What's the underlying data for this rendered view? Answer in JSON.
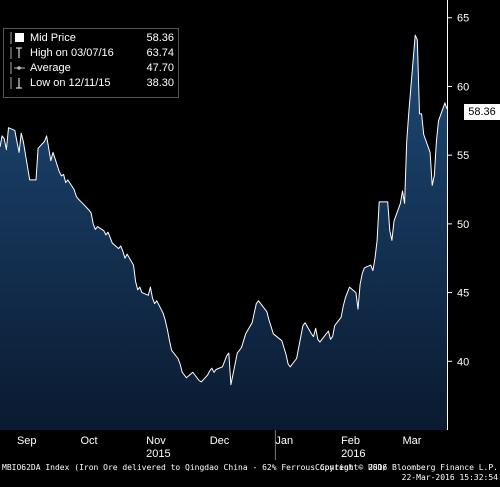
{
  "chart_data": {
    "type": "area",
    "title": "",
    "xlabel": "",
    "ylabel": "",
    "ylim": [
      35,
      66
    ],
    "grid": false,
    "legend_placement": "top-left",
    "colors": {
      "fill_top": "#1e4a78",
      "fill_bottom": "#0a1a30",
      "line": "#ffffff",
      "divider": "#7a7a7a",
      "background": "#000000"
    },
    "x_tick_labels": [
      {
        "label": "Sep",
        "date": "2015-09-01"
      },
      {
        "label": "Oct",
        "date": "2015-10-01"
      },
      {
        "label": "Nov",
        "date": "2015-11-01"
      },
      {
        "label": "Dec",
        "date": "2015-12-01"
      },
      {
        "label": "Jan",
        "date": "2016-01-01"
      },
      {
        "label": "Feb",
        "date": "2016-02-01"
      },
      {
        "label": "Mar",
        "date": "2016-03-01"
      }
    ],
    "year_labels": [
      {
        "label": "2015",
        "date": "2015-11-01"
      },
      {
        "label": "2016",
        "date": "2016-02-01"
      }
    ],
    "year_divider_date": "2016-01-01",
    "x_range": [
      "2015-08-24",
      "2016-03-22"
    ],
    "y_ticks": [
      40,
      45,
      50,
      55,
      60,
      65
    ],
    "series": [
      {
        "name": "Mid Price",
        "points": [
          [
            "2015-08-24",
            55.6
          ],
          [
            "2015-08-25",
            56.4
          ],
          [
            "2015-08-26",
            56.2
          ],
          [
            "2015-08-27",
            55.4
          ],
          [
            "2015-08-28",
            57.0
          ],
          [
            "2015-08-31",
            56.8
          ],
          [
            "2015-09-01",
            56.0
          ],
          [
            "2015-09-02",
            55.2
          ],
          [
            "2015-09-03",
            56.6
          ],
          [
            "2015-09-04",
            56.0
          ],
          [
            "2015-09-07",
            53.2
          ],
          [
            "2015-09-08",
            53.2
          ],
          [
            "2015-09-09",
            53.2
          ],
          [
            "2015-09-10",
            53.2
          ],
          [
            "2015-09-11",
            55.5
          ],
          [
            "2015-09-14",
            56.0
          ],
          [
            "2015-09-15",
            56.4
          ],
          [
            "2015-09-16",
            55.5
          ],
          [
            "2015-09-17",
            54.6
          ],
          [
            "2015-09-18",
            55.2
          ],
          [
            "2015-09-21",
            53.8
          ],
          [
            "2015-09-22",
            53.5
          ],
          [
            "2015-09-23",
            53.6
          ],
          [
            "2015-09-24",
            53.0
          ],
          [
            "2015-09-25",
            53.2
          ],
          [
            "2015-09-28",
            52.5
          ],
          [
            "2015-09-29",
            52.0
          ],
          [
            "2015-09-30",
            51.8
          ],
          [
            "2015-10-02",
            51.5
          ],
          [
            "2015-10-05",
            51.0
          ],
          [
            "2015-10-06",
            50.8
          ],
          [
            "2015-10-07",
            50.0
          ],
          [
            "2015-10-08",
            49.6
          ],
          [
            "2015-10-09",
            49.8
          ],
          [
            "2015-10-12",
            49.5
          ],
          [
            "2015-10-13",
            49.2
          ],
          [
            "2015-10-14",
            49.4
          ],
          [
            "2015-10-15",
            49.0
          ],
          [
            "2015-10-16",
            48.6
          ],
          [
            "2015-10-19",
            48.2
          ],
          [
            "2015-10-20",
            48.4
          ],
          [
            "2015-10-21",
            48.0
          ],
          [
            "2015-10-22",
            47.5
          ],
          [
            "2015-10-23",
            47.8
          ],
          [
            "2015-10-26",
            47.0
          ],
          [
            "2015-10-27",
            45.8
          ],
          [
            "2015-10-28",
            45.2
          ],
          [
            "2015-10-29",
            45.4
          ],
          [
            "2015-10-30",
            45.0
          ],
          [
            "2015-11-02",
            44.8
          ],
          [
            "2015-11-03",
            45.4
          ],
          [
            "2015-11-04",
            44.6
          ],
          [
            "2015-11-05",
            44.2
          ],
          [
            "2015-11-06",
            44.4
          ],
          [
            "2015-11-09",
            43.5
          ],
          [
            "2015-11-10",
            43.0
          ],
          [
            "2015-11-11",
            42.3
          ],
          [
            "2015-11-12",
            41.5
          ],
          [
            "2015-11-13",
            40.8
          ],
          [
            "2015-11-16",
            40.2
          ],
          [
            "2015-11-17",
            39.8
          ],
          [
            "2015-11-18",
            39.2
          ],
          [
            "2015-11-19",
            39.0
          ],
          [
            "2015-11-20",
            38.8
          ],
          [
            "2015-11-23",
            39.2
          ],
          [
            "2015-11-24",
            39.0
          ],
          [
            "2015-11-25",
            38.8
          ],
          [
            "2015-11-26",
            38.6
          ],
          [
            "2015-11-27",
            38.5
          ],
          [
            "2015-11-30",
            39.0
          ],
          [
            "2015-12-01",
            39.3
          ],
          [
            "2015-12-02",
            39.5
          ],
          [
            "2015-12-03",
            39.2
          ],
          [
            "2015-12-04",
            39.4
          ],
          [
            "2015-12-07",
            39.6
          ],
          [
            "2015-12-08",
            40.0
          ],
          [
            "2015-12-09",
            40.4
          ],
          [
            "2015-12-10",
            40.6
          ],
          [
            "2015-12-11",
            38.3
          ],
          [
            "2015-12-14",
            40.6
          ],
          [
            "2015-12-15",
            40.8
          ],
          [
            "2015-12-16",
            41.0
          ],
          [
            "2015-12-17",
            41.5
          ],
          [
            "2015-12-18",
            42.0
          ],
          [
            "2015-12-21",
            42.8
          ],
          [
            "2015-12-22",
            43.5
          ],
          [
            "2015-12-23",
            44.2
          ],
          [
            "2015-12-24",
            44.4
          ],
          [
            "2015-12-28",
            43.6
          ],
          [
            "2015-12-29",
            43.0
          ],
          [
            "2015-12-30",
            42.5
          ],
          [
            "2015-12-31",
            42.0
          ],
          [
            "2016-01-04",
            41.5
          ],
          [
            "2016-01-05",
            41.0
          ],
          [
            "2016-01-06",
            40.5
          ],
          [
            "2016-01-07",
            39.8
          ],
          [
            "2016-01-08",
            39.6
          ],
          [
            "2016-01-11",
            40.2
          ],
          [
            "2016-01-12",
            41.0
          ],
          [
            "2016-01-13",
            41.8
          ],
          [
            "2016-01-14",
            42.6
          ],
          [
            "2016-01-15",
            42.8
          ],
          [
            "2016-01-18",
            42.0
          ],
          [
            "2016-01-19",
            41.8
          ],
          [
            "2016-01-20",
            42.4
          ],
          [
            "2016-01-21",
            41.6
          ],
          [
            "2016-01-22",
            41.4
          ],
          [
            "2016-01-25",
            42.0
          ],
          [
            "2016-01-26",
            42.2
          ],
          [
            "2016-01-27",
            41.6
          ],
          [
            "2016-01-28",
            41.8
          ],
          [
            "2016-01-29",
            42.6
          ],
          [
            "2016-02-01",
            43.2
          ],
          [
            "2016-02-02",
            44.0
          ],
          [
            "2016-02-03",
            44.6
          ],
          [
            "2016-02-04",
            45.0
          ],
          [
            "2016-02-05",
            45.4
          ],
          [
            "2016-02-08",
            45.0
          ],
          [
            "2016-02-09",
            43.8
          ],
          [
            "2016-02-10",
            45.6
          ],
          [
            "2016-02-11",
            46.4
          ],
          [
            "2016-02-12",
            46.8
          ],
          [
            "2016-02-15",
            47.0
          ],
          [
            "2016-02-16",
            46.6
          ],
          [
            "2016-02-17",
            47.5
          ],
          [
            "2016-02-18",
            48.8
          ],
          [
            "2016-02-19",
            51.6
          ],
          [
            "2016-02-22",
            51.6
          ],
          [
            "2016-02-23",
            51.6
          ],
          [
            "2016-02-24",
            49.5
          ],
          [
            "2016-02-25",
            48.8
          ],
          [
            "2016-02-26",
            50.2
          ],
          [
            "2016-02-29",
            51.5
          ],
          [
            "2016-03-01",
            52.4
          ],
          [
            "2016-03-02",
            51.5
          ],
          [
            "2016-03-03",
            56.0
          ],
          [
            "2016-03-04",
            58.2
          ],
          [
            "2016-03-07",
            63.74
          ],
          [
            "2016-03-08",
            63.4
          ],
          [
            "2016-03-09",
            58.0
          ],
          [
            "2016-03-10",
            58.0
          ],
          [
            "2016-03-11",
            56.5
          ],
          [
            "2016-03-14",
            55.2
          ],
          [
            "2016-03-15",
            52.8
          ],
          [
            "2016-03-16",
            53.5
          ],
          [
            "2016-03-17",
            56.0
          ],
          [
            "2016-03-18",
            57.5
          ],
          [
            "2016-03-21",
            58.8
          ],
          [
            "2016-03-22",
            58.36
          ]
        ]
      }
    ],
    "legend": [
      {
        "symbol": "square",
        "label": "Mid Price",
        "value": "58.36"
      },
      {
        "symbol": "high",
        "label": "High on 03/07/16",
        "value": "63.74"
      },
      {
        "symbol": "average",
        "label": "Average",
        "value": "47.70"
      },
      {
        "symbol": "low",
        "label": "Low on 12/11/15",
        "value": "38.30"
      }
    ],
    "last_value_label": "58.36"
  },
  "footer": {
    "left": "MBIO62DA Index (Iron Ore delivered to Qingdao China - 62% Ferrous Content - USD/",
    "right_line1": "Copyright© 2016 Bloomberg Finance L.P.",
    "right_line2": "22-Mar-2016 15:32:54"
  }
}
